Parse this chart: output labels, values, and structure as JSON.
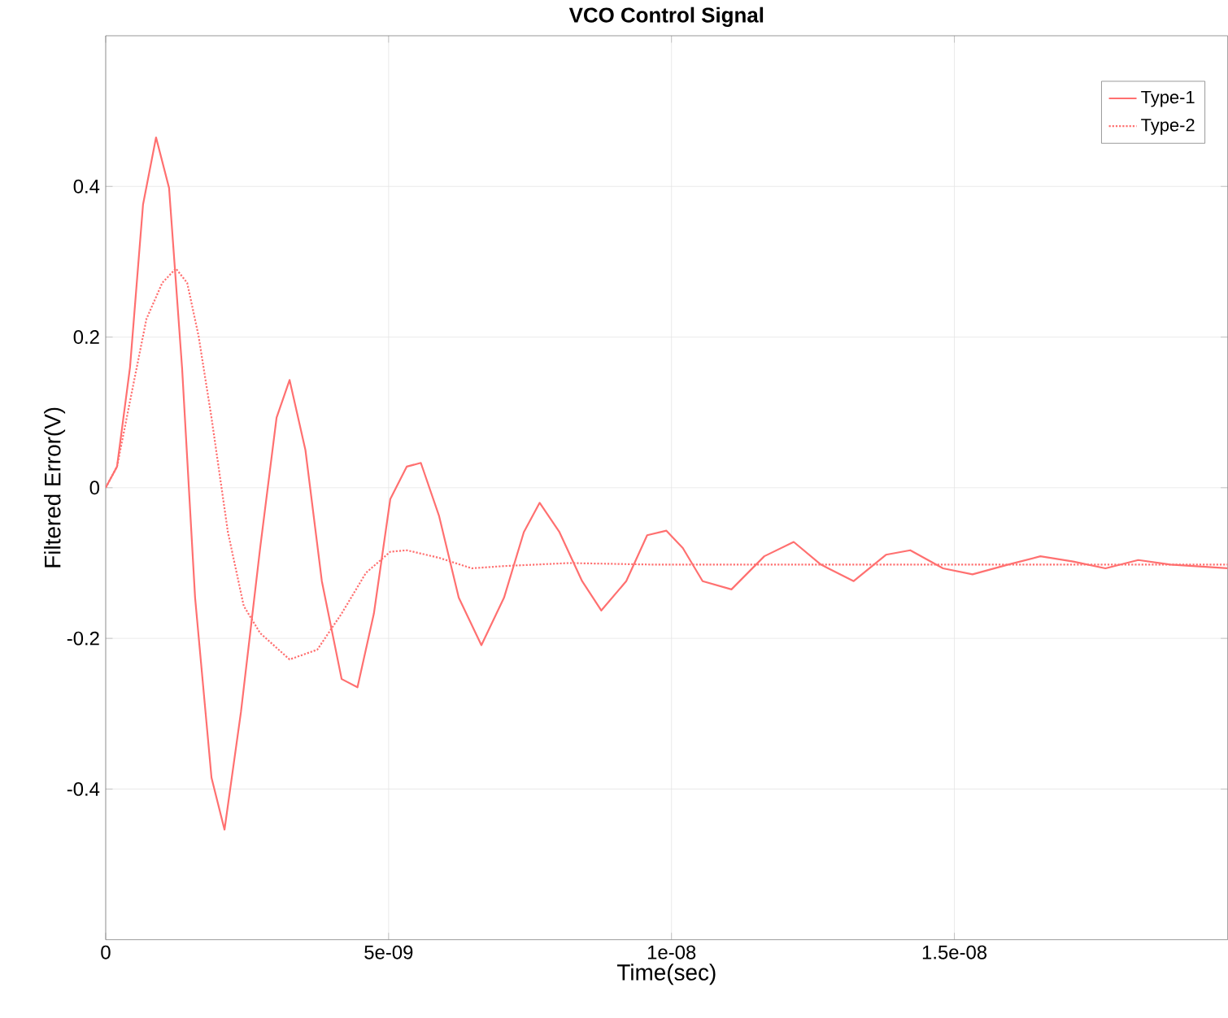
{
  "chart_data": {
    "type": "line",
    "title": "VCO Control Signal",
    "xlabel": "Time(sec)",
    "ylabel": "Filtered Error(V)",
    "xlim": [
      0,
      1.983e-08
    ],
    "ylim": [
      -0.6,
      0.6
    ],
    "xticks": [
      0,
      {
        "value": 5e-09,
        "label": "5e-09"
      },
      {
        "value": 1e-08,
        "label": "1e-08"
      },
      {
        "value": 1.5e-08,
        "label": "1.5e-08"
      }
    ],
    "yticks": [
      -0.4,
      -0.2,
      0,
      0.2,
      0.4
    ],
    "grid": true,
    "legend": "top right",
    "marker": "none",
    "series": [
      {
        "name": "Type-1",
        "color": "#ff7070",
        "line_style": "solid",
        "x": [
          0,
          2e-10,
          4.3e-10,
          6.6e-10,
          8.9e-10,
          1.12e-09,
          1.35e-09,
          1.58e-09,
          1.87e-09,
          2.1e-09,
          2.39e-09,
          2.73e-09,
          3.02e-09,
          3.25e-09,
          3.53e-09,
          3.82e-09,
          4.17e-09,
          4.45e-09,
          4.74e-09,
          5.03e-09,
          5.32e-09,
          5.57e-09,
          5.89e-09,
          6.24e-09,
          6.64e-09,
          7.04e-09,
          7.39e-09,
          7.67e-09,
          8.02e-09,
          8.42e-09,
          8.76e-09,
          9.2e-09,
          9.57e-09,
          9.91e-09,
          1.02e-08,
          1.055e-08,
          1.106e-08,
          1.164e-08,
          1.216e-08,
          1.264e-08,
          1.322e-08,
          1.379e-08,
          1.422e-08,
          1.48e-08,
          1.532e-08,
          1.595e-08,
          1.652e-08,
          1.71e-08,
          1.767e-08,
          1.825e-08,
          1.882e-08,
          1.983e-08
        ],
        "values": [
          0,
          0.028,
          0.16,
          0.376,
          0.465,
          0.398,
          0.159,
          -0.146,
          -0.385,
          -0.454,
          -0.298,
          -0.08,
          0.093,
          0.143,
          0.05,
          -0.124,
          -0.254,
          -0.265,
          -0.167,
          -0.015,
          0.028,
          0.033,
          -0.037,
          -0.146,
          -0.209,
          -0.146,
          -0.059,
          -0.02,
          -0.059,
          -0.124,
          -0.163,
          -0.124,
          -0.063,
          -0.057,
          -0.08,
          -0.124,
          -0.135,
          -0.091,
          -0.072,
          -0.102,
          -0.124,
          -0.089,
          -0.083,
          -0.107,
          -0.115,
          -0.102,
          -0.091,
          -0.098,
          -0.107,
          -0.096,
          -0.102,
          -0.107
        ]
      },
      {
        "name": "Type-2",
        "color": "#ff7070",
        "line_style": "dotted",
        "x": [
          0,
          2e-10,
          4.3e-10,
          7.2e-10,
          1e-09,
          1.24e-09,
          1.44e-09,
          1.64e-09,
          1.87e-09,
          2.16e-09,
          2.44e-09,
          2.73e-09,
          3.25e-09,
          3.74e-09,
          4.17e-09,
          4.6e-09,
          5.03e-09,
          5.32e-09,
          5.89e-09,
          6.47e-09,
          7.04e-09,
          8.19e-09,
          9.63e-09,
          1.25e-08,
          1.983e-08
        ],
        "values": [
          0,
          0.028,
          0.115,
          0.224,
          0.272,
          0.291,
          0.272,
          0.202,
          0.093,
          -0.059,
          -0.157,
          -0.193,
          -0.228,
          -0.215,
          -0.167,
          -0.113,
          -0.085,
          -0.083,
          -0.093,
          -0.107,
          -0.104,
          -0.1,
          -0.102,
          -0.102,
          -0.102
        ]
      }
    ]
  }
}
